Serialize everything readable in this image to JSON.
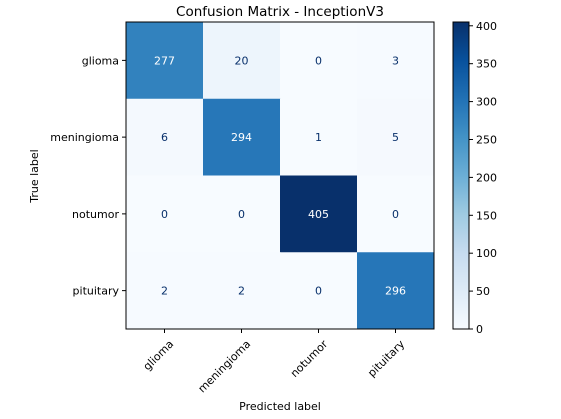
{
  "chart_data": {
    "type": "heatmap",
    "title": "Confusion Matrix - InceptionV3",
    "xlabel": "Predicted label",
    "ylabel": "True label",
    "x_categories": [
      "glioma",
      "meningioma",
      "notumor",
      "pituitary"
    ],
    "y_categories": [
      "glioma",
      "meningioma",
      "notumor",
      "pituitary"
    ],
    "values": [
      [
        277,
        20,
        0,
        3
      ],
      [
        6,
        294,
        1,
        5
      ],
      [
        0,
        0,
        405,
        0
      ],
      [
        2,
        2,
        0,
        296
      ]
    ],
    "colormap": "Blues",
    "colorbar": {
      "range": [
        0,
        405
      ],
      "ticks": [
        0,
        50,
        100,
        150,
        200,
        250,
        300,
        350,
        400
      ]
    },
    "text_color_light": "#ffffff",
    "text_color_dark": "#08306b"
  }
}
